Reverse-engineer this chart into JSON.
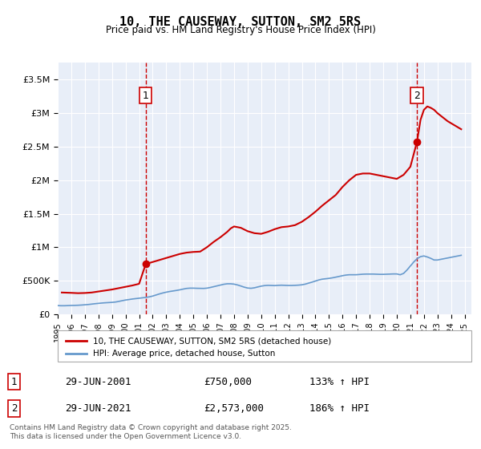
{
  "title": "10, THE CAUSEWAY, SUTTON, SM2 5RS",
  "subtitle": "Price paid vs. HM Land Registry's House Price Index (HPI)",
  "background_color": "#ffffff",
  "plot_bg_color": "#e8eef8",
  "grid_color": "#ffffff",
  "ylim": [
    0,
    3750000
  ],
  "yticks": [
    0,
    500000,
    1000000,
    1500000,
    2000000,
    2500000,
    3000000,
    3500000
  ],
  "ytick_labels": [
    "£0",
    "£500K",
    "£1M",
    "£1.5M",
    "£2M",
    "£2.5M",
    "£3M",
    "£3.5M"
  ],
  "xlim_start": 1995.0,
  "xlim_end": 2025.5,
  "xticks": [
    1995,
    1996,
    1997,
    1998,
    1999,
    2000,
    2001,
    2002,
    2003,
    2004,
    2005,
    2006,
    2007,
    2008,
    2009,
    2010,
    2011,
    2012,
    2013,
    2014,
    2015,
    2016,
    2017,
    2018,
    2019,
    2020,
    2021,
    2022,
    2023,
    2024,
    2025
  ],
  "line1_color": "#cc0000",
  "line2_color": "#6699cc",
  "marker1_x": 2001.49,
  "marker1_y": 750000,
  "marker2_x": 2021.49,
  "marker2_y": 2573000,
  "annotation1_label": "1",
  "annotation2_label": "2",
  "legend_label1": "10, THE CAUSEWAY, SUTTON, SM2 5RS (detached house)",
  "legend_label2": "HPI: Average price, detached house, Sutton",
  "table_row1": [
    "1",
    "29-JUN-2001",
    "£750,000",
    "133% ↑ HPI"
  ],
  "table_row2": [
    "2",
    "29-JUN-2021",
    "£2,573,000",
    "186% ↑ HPI"
  ],
  "footer": "Contains HM Land Registry data © Crown copyright and database right 2025.\nThis data is licensed under the Open Government Licence v3.0.",
  "hpi_data": {
    "years": [
      1995.0,
      1995.25,
      1995.5,
      1995.75,
      1996.0,
      1996.25,
      1996.5,
      1996.75,
      1997.0,
      1997.25,
      1997.5,
      1997.75,
      1998.0,
      1998.25,
      1998.5,
      1998.75,
      1999.0,
      1999.25,
      1999.5,
      1999.75,
      2000.0,
      2000.25,
      2000.5,
      2000.75,
      2001.0,
      2001.25,
      2001.5,
      2001.75,
      2002.0,
      2002.25,
      2002.5,
      2002.75,
      2003.0,
      2003.25,
      2003.5,
      2003.75,
      2004.0,
      2004.25,
      2004.5,
      2004.75,
      2005.0,
      2005.25,
      2005.5,
      2005.75,
      2006.0,
      2006.25,
      2006.5,
      2006.75,
      2007.0,
      2007.25,
      2007.5,
      2007.75,
      2008.0,
      2008.25,
      2008.5,
      2008.75,
      2009.0,
      2009.25,
      2009.5,
      2009.75,
      2010.0,
      2010.25,
      2010.5,
      2010.75,
      2011.0,
      2011.25,
      2011.5,
      2011.75,
      2012.0,
      2012.25,
      2012.5,
      2012.75,
      2013.0,
      2013.25,
      2013.5,
      2013.75,
      2014.0,
      2014.25,
      2014.5,
      2014.75,
      2015.0,
      2015.25,
      2015.5,
      2015.75,
      2016.0,
      2016.25,
      2016.5,
      2016.75,
      2017.0,
      2017.25,
      2017.5,
      2017.75,
      2018.0,
      2018.25,
      2018.5,
      2018.75,
      2019.0,
      2019.25,
      2019.5,
      2019.75,
      2020.0,
      2020.25,
      2020.5,
      2020.75,
      2021.0,
      2021.25,
      2021.5,
      2021.75,
      2022.0,
      2022.25,
      2022.5,
      2022.75,
      2023.0,
      2023.25,
      2023.5,
      2023.75,
      2024.0,
      2024.25,
      2024.5,
      2024.75
    ],
    "values": [
      130000,
      128000,
      128000,
      130000,
      132000,
      133000,
      135000,
      138000,
      142000,
      146000,
      152000,
      158000,
      163000,
      168000,
      172000,
      175000,
      178000,
      183000,
      192000,
      203000,
      213000,
      220000,
      228000,
      234000,
      240000,
      246000,
      252000,
      260000,
      272000,
      288000,
      304000,
      318000,
      330000,
      340000,
      348000,
      356000,
      365000,
      376000,
      386000,
      390000,
      390000,
      388000,
      387000,
      386000,
      390000,
      400000,
      412000,
      424000,
      436000,
      448000,
      455000,
      455000,
      450000,
      438000,
      422000,
      405000,
      392000,
      388000,
      395000,
      408000,
      420000,
      428000,
      432000,
      430000,
      428000,
      432000,
      434000,
      432000,
      430000,
      430000,
      432000,
      435000,
      440000,
      450000,
      465000,
      480000,
      496000,
      512000,
      524000,
      530000,
      536000,
      544000,
      554000,
      565000,
      576000,
      585000,
      590000,
      590000,
      590000,
      594000,
      598000,
      600000,
      600000,
      600000,
      598000,
      596000,
      596000,
      598000,
      600000,
      602000,
      602000,
      590000,
      610000,
      660000,
      720000,
      780000,
      830000,
      860000,
      870000,
      855000,
      835000,
      810000,
      810000,
      820000,
      830000,
      840000,
      850000,
      860000,
      870000,
      880000
    ]
  },
  "house_data": {
    "years": [
      1995.3,
      1996.0,
      1996.5,
      1997.0,
      1997.5,
      1998.0,
      1998.5,
      1999.0,
      1999.5,
      2000.0,
      2000.5,
      2001.0,
      2001.49,
      2002.0,
      2002.5,
      2003.0,
      2003.5,
      2004.0,
      2004.5,
      2005.0,
      2005.5,
      2006.0,
      2006.5,
      2007.0,
      2007.5,
      2007.75,
      2008.0,
      2008.5,
      2009.0,
      2009.5,
      2010.0,
      2010.5,
      2011.0,
      2011.5,
      2012.0,
      2012.5,
      2013.0,
      2013.5,
      2014.0,
      2014.5,
      2015.0,
      2015.5,
      2016.0,
      2016.5,
      2017.0,
      2017.5,
      2018.0,
      2018.5,
      2019.0,
      2019.5,
      2020.0,
      2020.5,
      2021.0,
      2021.49,
      2021.75,
      2022.0,
      2022.25,
      2022.5,
      2022.75,
      2023.0,
      2023.25,
      2023.5,
      2023.75,
      2024.0,
      2024.25,
      2024.5,
      2024.75
    ],
    "values": [
      325000,
      320000,
      315000,
      318000,
      325000,
      340000,
      355000,
      370000,
      390000,
      410000,
      430000,
      455000,
      750000,
      780000,
      810000,
      840000,
      870000,
      900000,
      920000,
      930000,
      935000,
      1000000,
      1080000,
      1150000,
      1230000,
      1280000,
      1310000,
      1290000,
      1240000,
      1210000,
      1200000,
      1230000,
      1270000,
      1300000,
      1310000,
      1330000,
      1380000,
      1450000,
      1530000,
      1620000,
      1700000,
      1780000,
      1900000,
      2000000,
      2080000,
      2100000,
      2100000,
      2080000,
      2060000,
      2040000,
      2020000,
      2080000,
      2200000,
      2573000,
      2900000,
      3050000,
      3100000,
      3080000,
      3050000,
      3000000,
      2960000,
      2920000,
      2880000,
      2850000,
      2820000,
      2790000,
      2760000
    ]
  }
}
